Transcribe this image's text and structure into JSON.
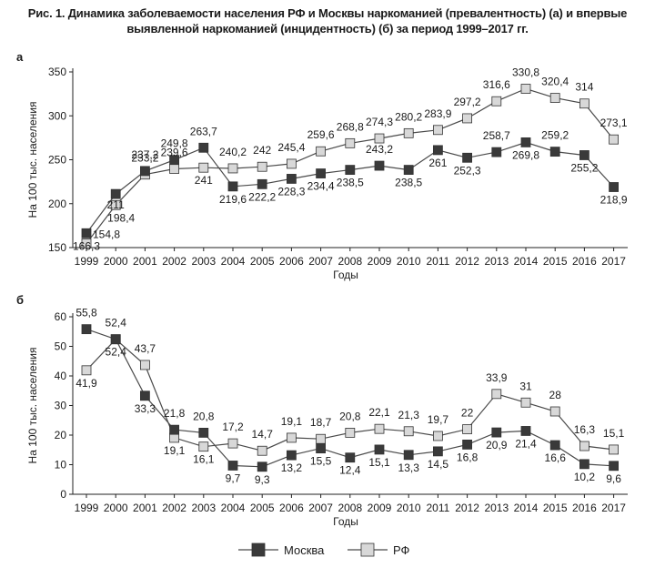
{
  "figure_title": "Рис. 1. Динамика заболеваемости населения РФ и Москвы наркоманией (превалентность) (а) и впервые выявленной наркоманией (инцидентность) (б) за период 1999–2017 гг.",
  "colors": {
    "moscow": "#3a3a3a",
    "rf": "#d8d8d8",
    "line": "#4a4a4a",
    "marker_edge": "#333333"
  },
  "legend": [
    {
      "name": "Москва",
      "marker": "filled-square"
    },
    {
      "name": "РФ",
      "marker": "hollow-square"
    }
  ],
  "chart_data": [
    {
      "type": "line",
      "panel": "а",
      "title": "",
      "xlabel": "Годы",
      "ylabel": "На 100 тыс. населения",
      "ylim": [
        150,
        350
      ],
      "yticks": [
        150,
        200,
        250,
        300,
        350
      ],
      "categories": [
        "1999",
        "2000",
        "2001",
        "2002",
        "2003",
        "2004",
        "2005",
        "2006",
        "2007",
        "2008",
        "2009",
        "2010",
        "2011",
        "2012",
        "2013",
        "2014",
        "2015",
        "2016",
        "2017"
      ],
      "series": [
        {
          "name": "Москва",
          "values": [
            166.3,
            211,
            237.2,
            249.8,
            263.7,
            219.6,
            222.2,
            228.3,
            234.4,
            238.5,
            243.2,
            238.5,
            261,
            252.3,
            258.7,
            269.8,
            259.2,
            255.2,
            218.9
          ],
          "labels": [
            "166,3",
            "211",
            "237,2",
            "249,8",
            "263,7",
            "219,6",
            "222,2",
            "228,3",
            "234,4",
            "238,5",
            "243,2",
            "238,5",
            "261",
            "252,3",
            "258,7",
            "269,8",
            "259,2",
            "255,2",
            "218,9"
          ]
        },
        {
          "name": "РФ",
          "values": [
            154.8,
            198.4,
            233.2,
            239.6,
            241,
            240.2,
            242,
            245.4,
            259.6,
            268.8,
            274.3,
            280.2,
            283.9,
            297.2,
            316.6,
            330.8,
            320.4,
            314,
            273.1
          ],
          "labels": [
            "154,8",
            "198,4",
            "233,2",
            "239,6",
            "241",
            "240,2",
            "242",
            "245,4",
            "259,6",
            "268,8",
            "274,3",
            "280,2",
            "283,9",
            "297,2",
            "316,6",
            "330,8",
            "320,4",
            "314",
            "273,1"
          ]
        }
      ]
    },
    {
      "type": "line",
      "panel": "б",
      "title": "",
      "xlabel": "Годы",
      "ylabel": "На 100 тыс. населения",
      "ylim": [
        0,
        60
      ],
      "yticks": [
        0,
        10,
        20,
        30,
        40,
        50,
        60
      ],
      "categories": [
        "1999",
        "2000",
        "2001",
        "2002",
        "2003",
        "2004",
        "2005",
        "2006",
        "2007",
        "2008",
        "2009",
        "2010",
        "2011",
        "2012",
        "2013",
        "2014",
        "2015",
        "2016",
        "2017"
      ],
      "series": [
        {
          "name": "Москва",
          "values": [
            55.8,
            52.4,
            33.3,
            21.8,
            20.8,
            9.7,
            9.3,
            13.2,
            15.5,
            12.4,
            15.1,
            13.3,
            14.5,
            16.8,
            20.9,
            21.4,
            16.6,
            10.2,
            9.6
          ],
          "labels": [
            "55,8",
            "52,4",
            "33,3",
            "21,8",
            "20,8",
            "9,7",
            "9,3",
            "13,2",
            "15,5",
            "12,4",
            "15,1",
            "13,3",
            "14,5",
            "16,8",
            "20,9",
            "21,4",
            "16,6",
            "10,2",
            "9,6"
          ]
        },
        {
          "name": "РФ",
          "values": [
            41.9,
            52.4,
            43.7,
            19.1,
            16.1,
            17.2,
            14.7,
            19.1,
            18.7,
            20.8,
            22.1,
            21.3,
            19.7,
            22,
            33.9,
            31,
            28,
            16.3,
            15.1
          ],
          "labels": [
            "41,9",
            "52,4",
            "43,7",
            "19,1",
            "16,1",
            "17,2",
            "14,7",
            "19,1",
            "18,7",
            "20,8",
            "22,1",
            "21,3",
            "19,7",
            "22",
            "33,9",
            "31",
            "28",
            "16,3",
            "15,1"
          ]
        }
      ]
    }
  ]
}
